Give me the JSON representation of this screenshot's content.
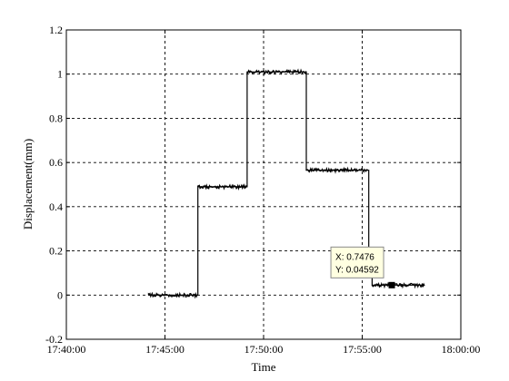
{
  "chart_data": {
    "type": "line",
    "xlabel": "Time",
    "ylabel": "Displacement(mm)",
    "xlim": [
      "17:40:00",
      "18:00:00"
    ],
    "ylim": [
      -0.2,
      1.2
    ],
    "x_tick_labels": [
      "17:40:00",
      "17:45:00",
      "17:50:00",
      "17:55:00",
      "18:00:00"
    ],
    "y_tick_labels": [
      "-0.2",
      "0",
      "0.2",
      "0.4",
      "0.6",
      "0.8",
      "1",
      "1.2"
    ],
    "grid": true,
    "series": [
      {
        "color": "#000000",
        "x": [
          "17:44:10",
          "17:46:40",
          "17:46:40",
          "17:49:10",
          "17:49:10",
          "17:52:10",
          "17:52:10",
          "17:55:20",
          "17:55:20",
          "17:55:30",
          "17:55:30",
          "17:58:10"
        ],
        "values": [
          0.0,
          0.0,
          0.49,
          0.49,
          1.01,
          1.01,
          0.565,
          0.565,
          0.2,
          0.2,
          0.045,
          0.045
        ]
      }
    ],
    "data_tip": {
      "x_text": "X: 0.7476",
      "y_text": "Y: 0.04592",
      "x": "17:56:30",
      "y": 0.045
    }
  }
}
